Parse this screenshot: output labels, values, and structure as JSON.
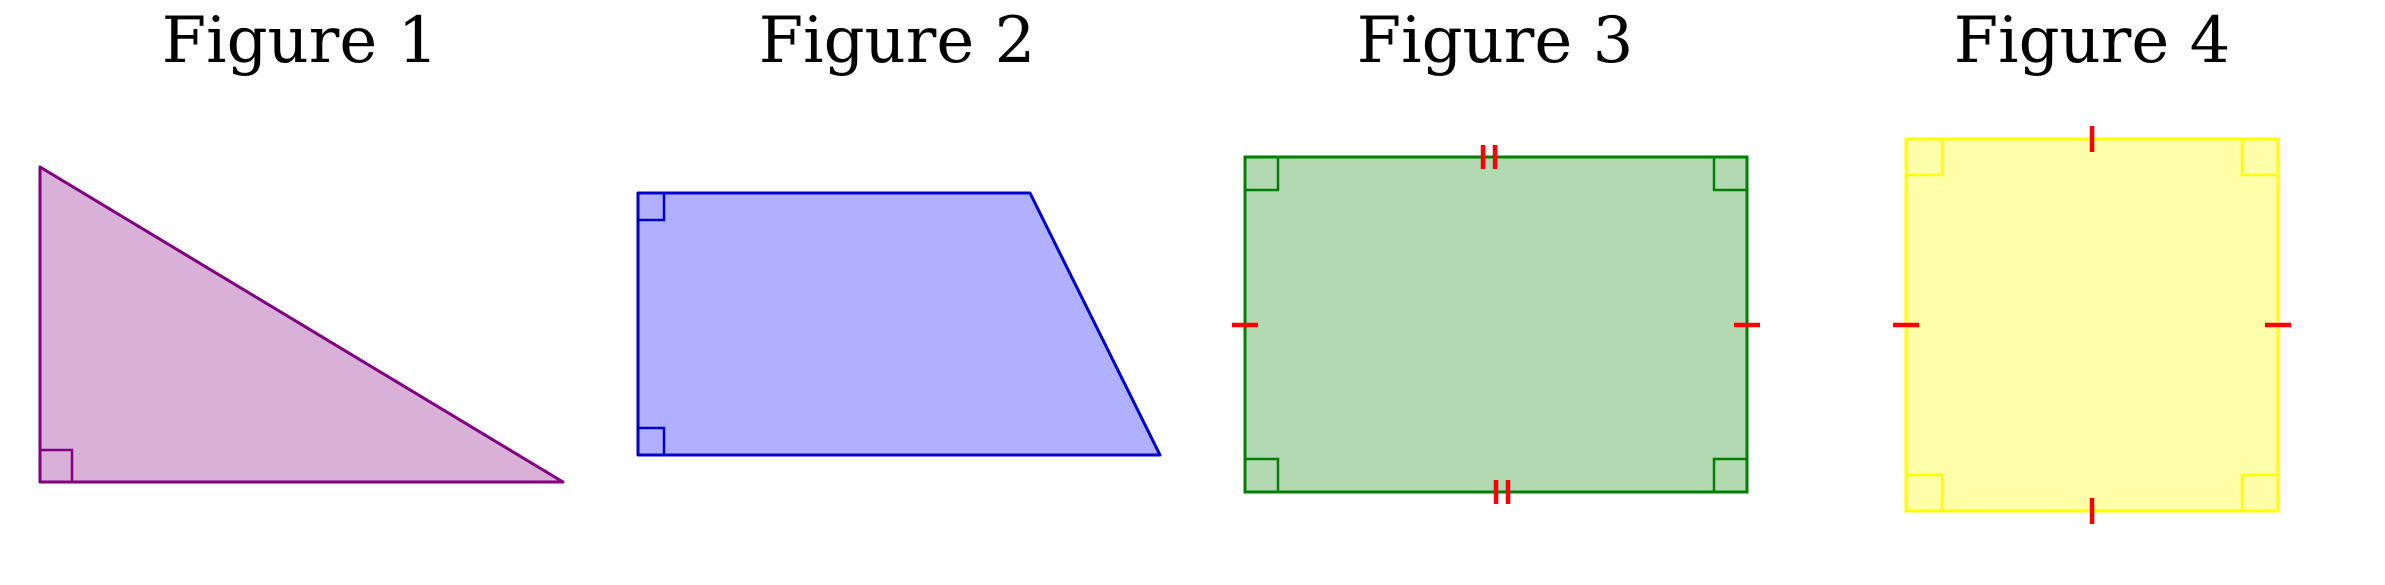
{
  "figures": [
    {
      "title": "Figure 1",
      "shape": "right-triangle",
      "stroke": "#800080",
      "fill": "#d8b0d8",
      "right_angle_marks": 1,
      "equal_side_marks": []
    },
    {
      "title": "Figure 2",
      "shape": "right-trapezoid",
      "stroke": "#0000cc",
      "fill": "#b0b0ff",
      "right_angle_marks": 2,
      "equal_side_marks": []
    },
    {
      "title": "Figure 3",
      "shape": "rectangle",
      "stroke": "#008000",
      "fill": "#b2d9b2",
      "right_angle_marks": 4,
      "equal_side_marks": [
        {
          "sides": "top-bottom",
          "ticks": 2
        },
        {
          "sides": "left-right",
          "ticks": 1
        }
      ]
    },
    {
      "title": "Figure 4",
      "shape": "square",
      "stroke": "#ffff00",
      "fill": "#ffffaa",
      "right_angle_marks": 4,
      "equal_side_marks": [
        {
          "sides": "all",
          "ticks": 1
        }
      ]
    }
  ],
  "colors": {
    "tick_marks": "#ff0000"
  }
}
